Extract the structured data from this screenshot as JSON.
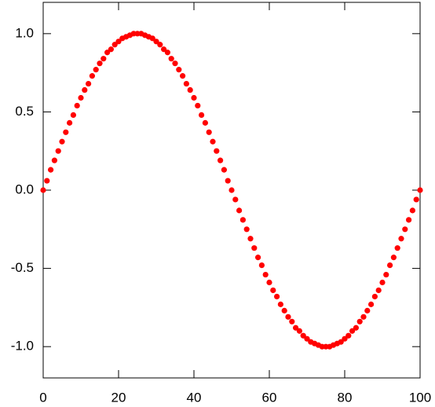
{
  "chart_data": {
    "type": "scatter",
    "color": "#ff0000",
    "x": [
      0,
      1,
      2,
      3,
      4,
      5,
      6,
      7,
      8,
      9,
      10,
      11,
      12,
      13,
      14,
      15,
      16,
      17,
      18,
      19,
      20,
      21,
      22,
      23,
      24,
      25,
      26,
      27,
      28,
      29,
      30,
      31,
      32,
      33,
      34,
      35,
      36,
      37,
      38,
      39,
      40,
      41,
      42,
      43,
      44,
      45,
      46,
      47,
      48,
      49,
      50,
      51,
      52,
      53,
      54,
      55,
      56,
      57,
      58,
      59,
      60,
      61,
      62,
      63,
      64,
      65,
      66,
      67,
      68,
      69,
      70,
      71,
      72,
      73,
      74,
      75,
      76,
      77,
      78,
      79,
      80,
      81,
      82,
      83,
      84,
      85,
      86,
      87,
      88,
      89,
      90,
      91,
      92,
      93,
      94,
      95,
      96,
      97,
      98,
      99,
      100
    ],
    "values": [
      0,
      0.06,
      0.13,
      0.19,
      0.25,
      0.31,
      0.37,
      0.43,
      0.48,
      0.54,
      0.59,
      0.64,
      0.68,
      0.73,
      0.77,
      0.81,
      0.84,
      0.88,
      0.9,
      0.93,
      0.95,
      0.97,
      0.98,
      0.99,
      1,
      1,
      1,
      0.99,
      0.98,
      0.97,
      0.95,
      0.93,
      0.9,
      0.88,
      0.84,
      0.81,
      0.77,
      0.73,
      0.68,
      0.64,
      0.59,
      0.54,
      0.48,
      0.43,
      0.37,
      0.31,
      0.25,
      0.19,
      0.13,
      0.06,
      0,
      -0.06,
      -0.13,
      -0.19,
      -0.25,
      -0.31,
      -0.37,
      -0.43,
      -0.48,
      -0.54,
      -0.59,
      -0.64,
      -0.68,
      -0.73,
      -0.77,
      -0.81,
      -0.84,
      -0.88,
      -0.9,
      -0.93,
      -0.95,
      -0.97,
      -0.98,
      -0.99,
      -1,
      -1,
      -1,
      -0.99,
      -0.98,
      -0.97,
      -0.95,
      -0.93,
      -0.9,
      -0.88,
      -0.84,
      -0.81,
      -0.77,
      -0.73,
      -0.68,
      -0.64,
      -0.59,
      -0.54,
      -0.48,
      -0.43,
      -0.37,
      -0.31,
      -0.25,
      -0.19,
      -0.13,
      -0.06,
      0
    ],
    "xlim": [
      0,
      100
    ],
    "xticks": [
      0,
      20,
      40,
      60,
      80,
      100
    ],
    "ylim": [
      -1.2,
      1.2
    ],
    "yticks": [
      {
        "value": -1,
        "label": "-1.0"
      },
      {
        "value": -0.5,
        "label": "-0.5"
      },
      {
        "value": 0,
        "label": "0.0"
      },
      {
        "value": 0.5,
        "label": "0.5"
      },
      {
        "value": 1,
        "label": "1.0"
      }
    ]
  }
}
